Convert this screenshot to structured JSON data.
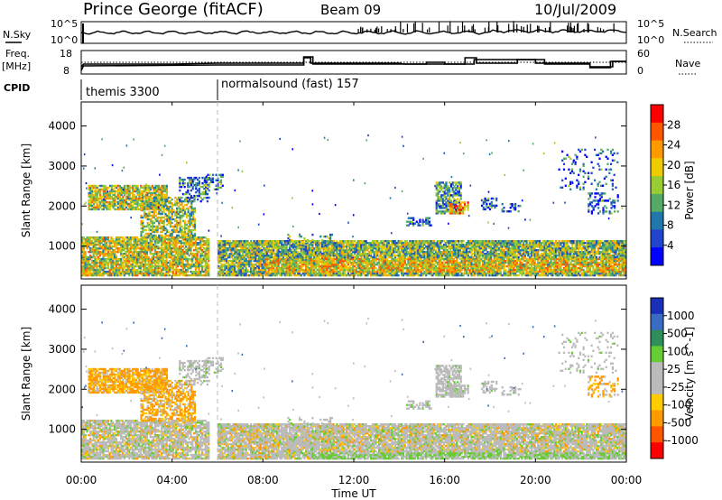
{
  "header": {
    "title": "Prince George (fitACF)",
    "beam": "Beam 09",
    "date": "10/Jul/2009"
  },
  "left_labels": {
    "nsky": "N.Sky",
    "freq": "Freq.",
    "freq_unit": "[MHz]",
    "cpid": "CPID"
  },
  "right_labels": {
    "nsearch": "N.Search",
    "nave": "Nave"
  },
  "noise_axis": {
    "top": "10^5",
    "bottom": "10^0",
    "right_top": "10^5",
    "right_bottom": "10^0"
  },
  "freq_axis": {
    "left_top": "18",
    "left_bottom": "8",
    "right_top": "60",
    "right_bottom": "0"
  },
  "cpid": [
    {
      "label": "themis 3300",
      "start_hour": 0
    },
    {
      "label": "normalsound (fast) 157",
      "start_hour": 6.0
    }
  ],
  "x_axis": {
    "label": "Time UT",
    "ticks": [
      "00:00",
      "04:00",
      "08:00",
      "12:00",
      "16:00",
      "20:00",
      "00:00"
    ],
    "range_hours": [
      0,
      24
    ]
  },
  "chart_data": [
    {
      "type": "heatmap",
      "quantity": "Power",
      "ylabel": "Slant Range [km]",
      "y_ticks": [
        "1000",
        "2000",
        "3000",
        "4000"
      ],
      "ylim": [
        180,
        4600
      ],
      "colorbar_label": "Power [dB]",
      "colorbar_ticks": [
        "28",
        "24",
        "20",
        "16",
        "12",
        "8",
        "4"
      ],
      "colorbar_colors": [
        "#ff0000",
        "#ff5500",
        "#ff9900",
        "#eecc00",
        "#99cc33",
        "#55aa66",
        "#2277aa",
        "#2244cc",
        "#0000ff"
      ]
    },
    {
      "type": "heatmap",
      "quantity": "Velocity",
      "ylabel": "Slant Range [km]",
      "y_ticks": [
        "1000",
        "2000",
        "3000",
        "4000"
      ],
      "ylim": [
        180,
        4600
      ],
      "colorbar_label": "Velocity [m s^-1]",
      "colorbar_ticks": [
        "1000",
        "500",
        "100",
        "25",
        "-25",
        "-100",
        "-500",
        "-1000"
      ],
      "colorbar_colors": [
        "#1a2fb8",
        "#3a6cc4",
        "#2f8f5a",
        "#66cc33",
        "#bbbbbb",
        "#bbbbbb",
        "#ffcc00",
        "#ff9900",
        "#ff5500",
        "#ff0000"
      ]
    }
  ]
}
